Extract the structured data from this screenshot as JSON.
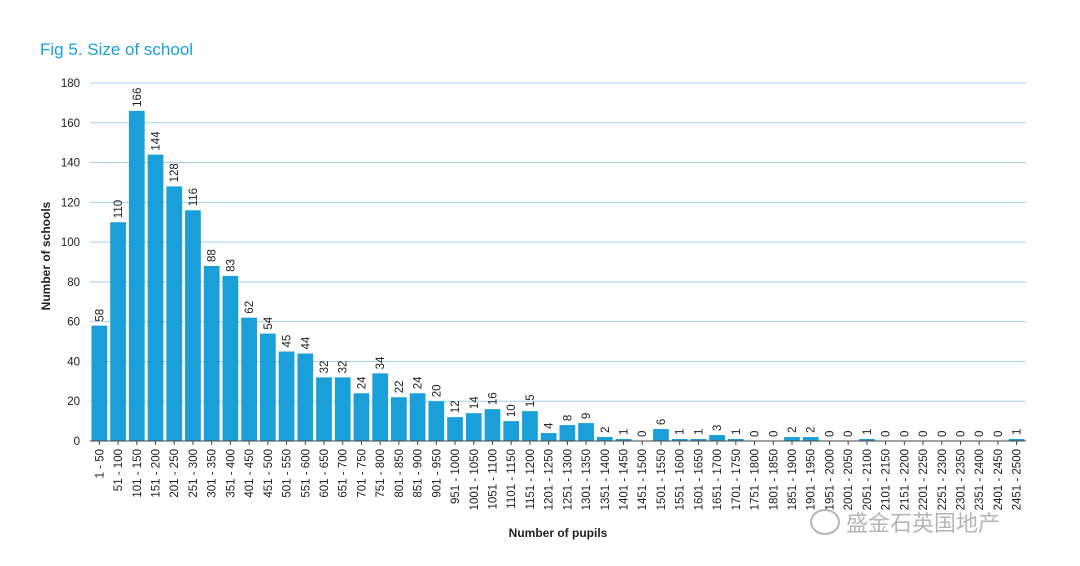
{
  "title": "Fig 5. Size of school",
  "watermark": "盛金石英国地产",
  "chart_data": {
    "type": "bar",
    "xlabel": "Number of pupils",
    "ylabel": "Number of schools",
    "ylim": [
      0,
      180
    ],
    "yticks": [
      0,
      20,
      40,
      60,
      80,
      100,
      120,
      140,
      160,
      180
    ],
    "grid": true,
    "bar_color": "#1a9fd8",
    "categories": [
      "1 - 50",
      "51 - 100",
      "101 - 150",
      "151 - 200",
      "201 - 250",
      "251 - 300",
      "301 - 350",
      "351 - 400",
      "401 - 450",
      "451 - 500",
      "501 - 550",
      "551 - 600",
      "601 - 650",
      "651 - 700",
      "701 - 750",
      "751 - 800",
      "801 - 850",
      "851 - 900",
      "901 - 950",
      "951 - 1000",
      "1001 - 1050",
      "1051 - 1100",
      "1101 - 1150",
      "1151 - 1200",
      "1201 - 1250",
      "1251 - 1300",
      "1301 - 1350",
      "1351 - 1400",
      "1401 - 1450",
      "1451 - 1500",
      "1501 - 1550",
      "1551 - 1600",
      "1601 - 1650",
      "1651 - 1700",
      "1701 - 1750",
      "1751 - 1800",
      "1801 - 1850",
      "1851 - 1900",
      "1901 - 1950",
      "1951 - 2000",
      "2001 - 2050",
      "2051 - 2100",
      "2101 - 2150",
      "2151 - 2200",
      "2201 - 2250",
      "2251 - 2300",
      "2301 - 2350",
      "2351 - 2400",
      "2401 - 2450",
      "2451 - 2500"
    ],
    "values": [
      58,
      110,
      166,
      144,
      128,
      116,
      88,
      83,
      62,
      54,
      45,
      44,
      32,
      32,
      24,
      34,
      22,
      24,
      20,
      12,
      14,
      16,
      10,
      15,
      4,
      8,
      9,
      2,
      1,
      0,
      6,
      1,
      1,
      3,
      1,
      0,
      0,
      2,
      2,
      0,
      0,
      1,
      0,
      0,
      0,
      0,
      0,
      0,
      0,
      1
    ]
  }
}
